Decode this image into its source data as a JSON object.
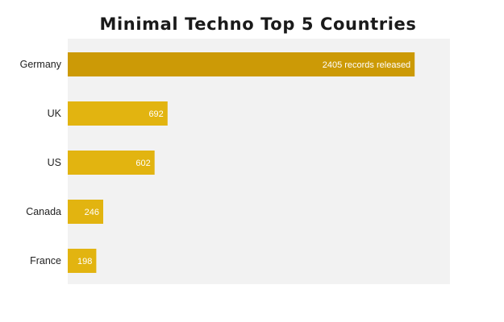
{
  "chart_data": {
    "type": "bar",
    "orientation": "horizontal",
    "title": "Minimal Techno Top 5 Countries",
    "xlabel": "",
    "ylabel": "",
    "categories": [
      "Germany",
      "UK",
      "US",
      "Canada",
      "France"
    ],
    "values": [
      2405,
      692,
      602,
      246,
      198
    ],
    "data_labels": [
      "2405 records released",
      "692",
      "602",
      "246",
      "198"
    ],
    "xlim": [
      0,
      2650
    ],
    "grid": false,
    "legend": "none",
    "colors": {
      "plot_background": "#f2f2f2",
      "highlight_bar": "#cc9a06",
      "bar": "#e2b410",
      "label_text": "#ffffff"
    }
  }
}
